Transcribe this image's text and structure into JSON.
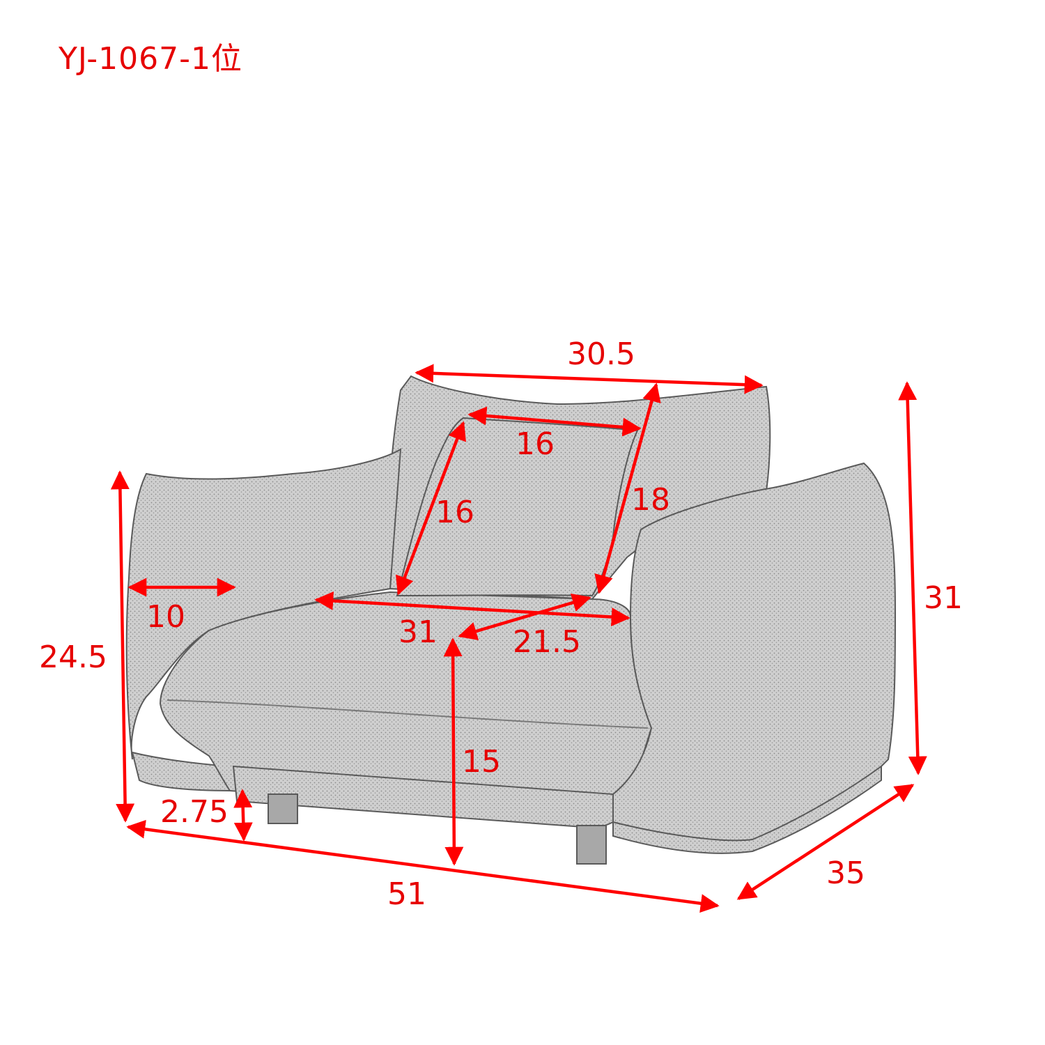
{
  "title": "YJ-1067-1位",
  "colors": {
    "dimension": "#ff0000",
    "sofa_fabric": "#c9c9c9",
    "sofa_outline": "#5a5a5a",
    "leg": "#a8a8a8"
  },
  "dimensions": {
    "overall_width": "51",
    "overall_depth": "35",
    "overall_height": "31",
    "arm_height": "24.5",
    "arm_width": "10",
    "seat_width": "31",
    "seat_depth": "21.5",
    "seat_height": "15",
    "leg_height": "2.75",
    "back_width": "30.5",
    "back_height": "18",
    "pillow_width": "16",
    "pillow_height": "16"
  }
}
